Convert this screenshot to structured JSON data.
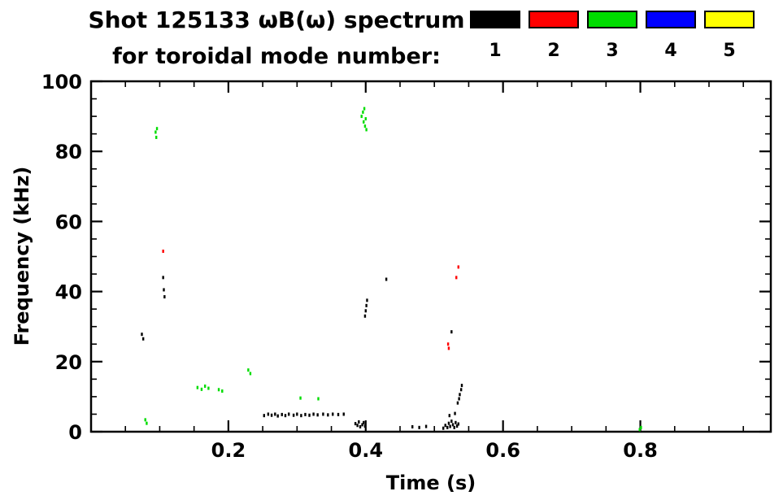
{
  "header": {
    "title_line1": "Shot 125133 ωB(ω) spectrum",
    "title_line2": "for toroidal mode number:"
  },
  "legend": {
    "items": [
      {
        "label": "1",
        "color": "#000000"
      },
      {
        "label": "2",
        "color": "#ff0000"
      },
      {
        "label": "3",
        "color": "#00dd00"
      },
      {
        "label": "4",
        "color": "#0000ff"
      },
      {
        "label": "5",
        "color": "#ffff00"
      }
    ]
  },
  "chart_data": {
    "type": "scatter",
    "title": "Shot 125133 ωB(ω) spectrum for toroidal mode number",
    "xlabel": "Time (s)",
    "ylabel": "Frequency (kHz)",
    "xlim": [
      0.0,
      0.99
    ],
    "ylim": [
      0,
      100
    ],
    "xticks": [
      {
        "v": 0.2,
        "label": "0.2"
      },
      {
        "v": 0.4,
        "label": "0.4"
      },
      {
        "v": 0.6,
        "label": "0.6"
      },
      {
        "v": 0.8,
        "label": "0.8"
      }
    ],
    "yticks": [
      {
        "v": 0,
        "label": "0"
      },
      {
        "v": 20,
        "label": "20"
      },
      {
        "v": 40,
        "label": "40"
      },
      {
        "v": 60,
        "label": "60"
      },
      {
        "v": 80,
        "label": "80"
      },
      {
        "v": 100,
        "label": "100"
      }
    ],
    "x_minor_step": 0.05,
    "y_minor_step": 5,
    "grid": false,
    "legend_position": "top-right",
    "series": [
      {
        "name": "n=1",
        "color": "#000000",
        "points": [
          [
            0.074,
            27.8
          ],
          [
            0.076,
            26.5
          ],
          [
            0.105,
            44.0
          ],
          [
            0.106,
            40.5
          ],
          [
            0.107,
            38.5
          ],
          [
            0.252,
            4.6
          ],
          [
            0.258,
            5.0
          ],
          [
            0.263,
            4.7
          ],
          [
            0.268,
            5.0
          ],
          [
            0.272,
            4.5
          ],
          [
            0.278,
            4.9
          ],
          [
            0.283,
            4.6
          ],
          [
            0.288,
            5.0
          ],
          [
            0.295,
            4.7
          ],
          [
            0.3,
            5.0
          ],
          [
            0.306,
            4.6
          ],
          [
            0.312,
            4.9
          ],
          [
            0.318,
            4.7
          ],
          [
            0.324,
            5.0
          ],
          [
            0.33,
            4.8
          ],
          [
            0.338,
            5.0
          ],
          [
            0.345,
            4.8
          ],
          [
            0.352,
            5.0
          ],
          [
            0.36,
            4.9
          ],
          [
            0.368,
            5.0
          ],
          [
            0.385,
            2.3
          ],
          [
            0.388,
            1.8
          ],
          [
            0.39,
            2.8
          ],
          [
            0.392,
            1.4
          ],
          [
            0.395,
            2.0
          ],
          [
            0.397,
            2.6
          ],
          [
            0.399,
            1.6
          ],
          [
            0.399,
            33.0
          ],
          [
            0.4,
            34.5
          ],
          [
            0.401,
            36.0
          ],
          [
            0.402,
            37.5
          ],
          [
            0.43,
            43.5
          ],
          [
            0.468,
            1.4
          ],
          [
            0.478,
            1.2
          ],
          [
            0.488,
            1.5
          ],
          [
            0.513,
            1.0
          ],
          [
            0.516,
            1.8
          ],
          [
            0.519,
            1.2
          ],
          [
            0.521,
            2.4
          ],
          [
            0.523,
            1.5
          ],
          [
            0.525,
            3.0
          ],
          [
            0.527,
            2.0
          ],
          [
            0.529,
            1.2
          ],
          [
            0.531,
            2.6
          ],
          [
            0.533,
            1.6
          ],
          [
            0.535,
            2.2
          ],
          [
            0.522,
            4.6
          ],
          [
            0.53,
            5.2
          ],
          [
            0.534,
            8.2
          ],
          [
            0.536,
            9.4
          ],
          [
            0.537,
            10.6
          ],
          [
            0.539,
            12.0
          ],
          [
            0.54,
            13.2
          ],
          [
            0.525,
            28.5
          ]
        ]
      },
      {
        "name": "n=2",
        "color": "#ff0000",
        "points": [
          [
            0.105,
            51.5
          ],
          [
            0.52,
            25.0
          ],
          [
            0.521,
            23.8
          ],
          [
            0.532,
            44.0
          ],
          [
            0.535,
            47.0
          ]
        ]
      },
      {
        "name": "n=3",
        "color": "#00dd00",
        "points": [
          [
            0.079,
            3.4
          ],
          [
            0.081,
            2.4
          ],
          [
            0.094,
            85.5
          ],
          [
            0.096,
            86.5
          ],
          [
            0.095,
            84.0
          ],
          [
            0.155,
            12.6
          ],
          [
            0.161,
            12.1
          ],
          [
            0.166,
            13.0
          ],
          [
            0.171,
            12.4
          ],
          [
            0.186,
            12.0
          ],
          [
            0.191,
            11.6
          ],
          [
            0.229,
            17.6
          ],
          [
            0.232,
            16.6
          ],
          [
            0.305,
            9.6
          ],
          [
            0.331,
            9.4
          ],
          [
            0.394,
            90.0
          ],
          [
            0.396,
            91.2
          ],
          [
            0.398,
            92.2
          ],
          [
            0.397,
            88.4
          ],
          [
            0.399,
            87.2
          ],
          [
            0.401,
            86.2
          ],
          [
            0.4,
            89.3
          ],
          [
            0.799,
            0.6
          ],
          [
            0.801,
            1.2
          ]
        ]
      },
      {
        "name": "n=4",
        "color": "#0000ff",
        "points": []
      },
      {
        "name": "n=5",
        "color": "#ffff00",
        "points": []
      }
    ]
  }
}
